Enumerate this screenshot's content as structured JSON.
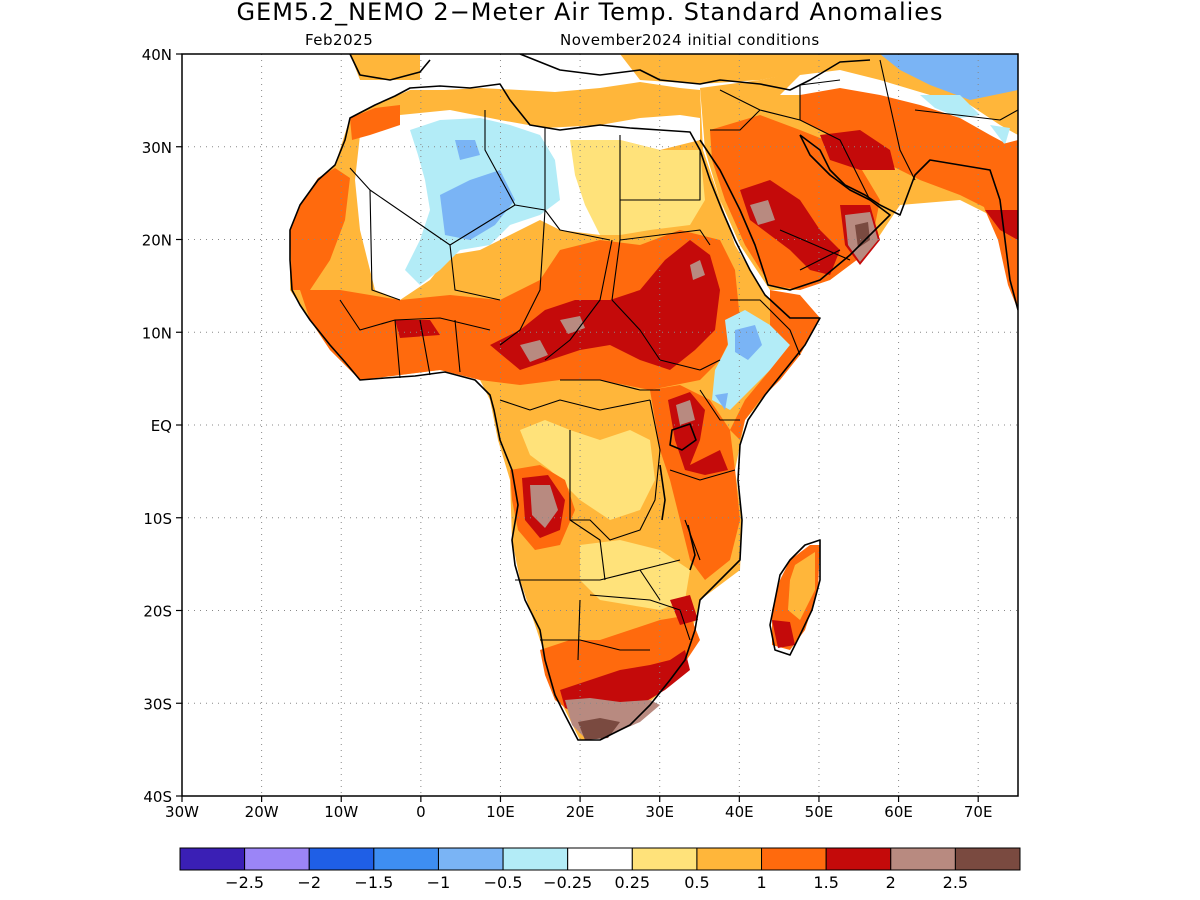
{
  "title": "GEM5.2_NEMO 2−Meter Air Temp. Standard Anomalies",
  "valid_month": "Feb2025",
  "init_conditions": "November2024 initial conditions",
  "map": {
    "lon_range": [
      -30,
      75
    ],
    "lat_range": [
      -40,
      40
    ],
    "lon_ticks": [
      {
        "value": -30,
        "label": "30W"
      },
      {
        "value": -20,
        "label": "20W"
      },
      {
        "value": -10,
        "label": "10W"
      },
      {
        "value": 0,
        "label": "0"
      },
      {
        "value": 10,
        "label": "10E"
      },
      {
        "value": 20,
        "label": "20E"
      },
      {
        "value": 30,
        "label": "30E"
      },
      {
        "value": 40,
        "label": "40E"
      },
      {
        "value": 50,
        "label": "50E"
      },
      {
        "value": 60,
        "label": "60E"
      },
      {
        "value": 70,
        "label": "70E"
      }
    ],
    "lat_ticks": [
      {
        "value": 40,
        "label": "40N"
      },
      {
        "value": 30,
        "label": "30N"
      },
      {
        "value": 20,
        "label": "20N"
      },
      {
        "value": 10,
        "label": "10N"
      },
      {
        "value": 0,
        "label": "EQ"
      },
      {
        "value": -10,
        "label": "10S"
      },
      {
        "value": -20,
        "label": "20S"
      },
      {
        "value": -30,
        "label": "30S"
      },
      {
        "value": -40,
        "label": "40S"
      }
    ]
  },
  "colorbar": {
    "colors": [
      "#3a1fb5",
      "#9b85f7",
      "#1f5fe6",
      "#3e8ef2",
      "#7ab4f5",
      "#b3ecf7",
      "#ffffff",
      "#ffe27a",
      "#ffb63a",
      "#ff6a0d",
      "#c40a0a",
      "#b88a80",
      "#7a4a40"
    ],
    "labels": [
      "−2.5",
      "−2",
      "−1.5",
      "−1",
      "−0.5",
      "−0.25",
      "0.25",
      "0.5",
      "1",
      "1.5",
      "2",
      "2.5"
    ]
  }
}
